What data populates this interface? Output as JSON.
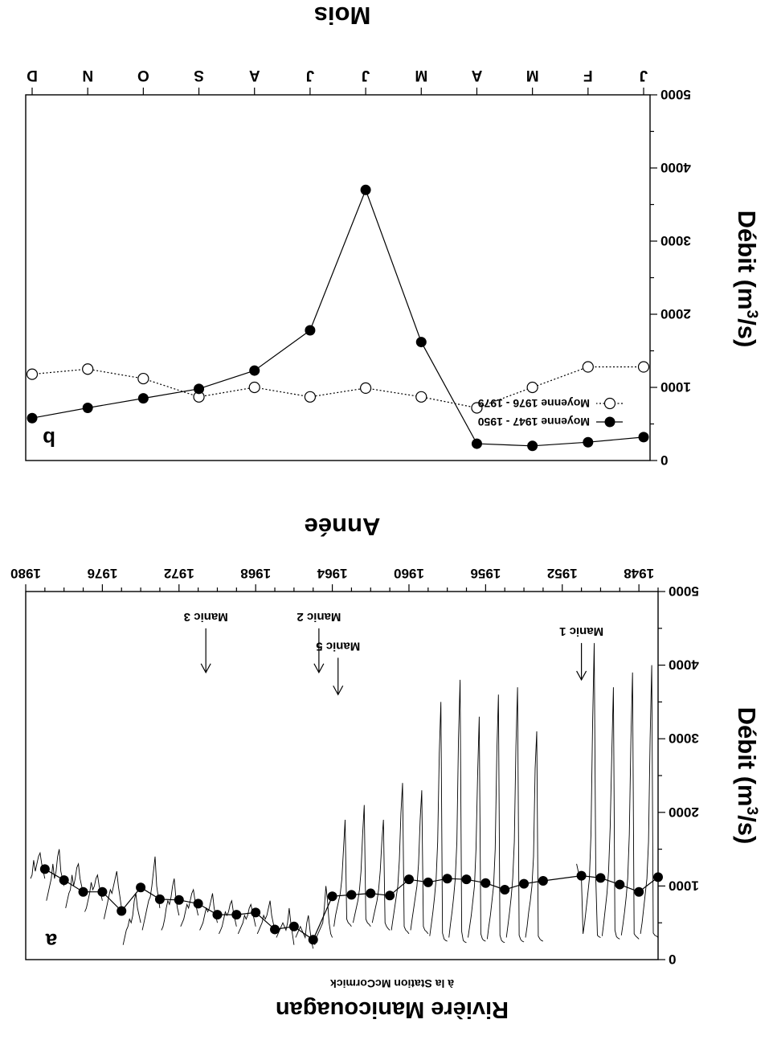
{
  "figure": {
    "title": "Rivière Manicouagan",
    "subtitle": "à la Station McCormick"
  },
  "chart_data": [
    {
      "id": "a",
      "type": "line",
      "panel_label": "a",
      "xlabel": "Année",
      "ylabel": "Débit (m",
      "ylabel_sup": "3",
      "ylabel_tail": "/s)",
      "xlim": [
        1947,
        1980
      ],
      "ylim": [
        0,
        5000
      ],
      "x_ticks": [
        1948,
        1952,
        1956,
        1960,
        1964,
        1968,
        1972,
        1976,
        1980
      ],
      "y_ticks": [
        0,
        1000,
        2000,
        3000,
        4000,
        5000
      ],
      "grid": false,
      "series": [
        {
          "name": "",
          "marker": "filled-circle",
          "x": [
            1947,
            1948,
            1949,
            1950,
            1951,
            1953,
            1954,
            1955,
            1956,
            1957,
            1958,
            1959,
            1960,
            1961,
            1962,
            1963,
            1964,
            1965,
            1966,
            1967,
            1968,
            1969,
            1970,
            1971,
            1972,
            1973,
            1974,
            1975,
            1976,
            1977,
            1978,
            1979
          ],
          "values": [
            1120,
            920,
            1020,
            1110,
            1140,
            1070,
            1030,
            950,
            1040,
            1090,
            1100,
            1050,
            1090,
            870,
            900,
            880,
            860,
            270,
            450,
            410,
            640,
            610,
            610,
            760,
            810,
            820,
            980,
            660,
            920,
            920,
            1080,
            1230
          ]
        },
        {
          "name": "",
          "marker": "none",
          "style": "monthly",
          "segments": [
            {
              "start": 1947.0,
              "values": [
                300,
                320,
                330,
                360,
                4000,
                3000,
                1600,
                1100,
                900,
                700,
                500,
                350
              ]
            },
            {
              "start": 1948.0,
              "values": [
                280,
                300,
                320,
                350,
                3900,
                3000,
                1700,
                1100,
                850,
                650,
                480,
                330
              ]
            },
            {
              "start": 1949.0,
              "values": [
                280,
                290,
                310,
                400,
                3700,
                2800,
                1800,
                1200,
                900,
                700,
                500,
                320
              ]
            },
            {
              "start": 1950.0,
              "values": [
                300,
                310,
                330,
                1100,
                4300,
                3200,
                1700,
                1100,
                900,
                700,
                500,
                350,
                1100,
                1150,
                1200,
                1300
              ]
            },
            {
              "start": 1953.0,
              "values": [
                250,
                260,
                280,
                320,
                3100,
                2600,
                1400,
                1000,
                800,
                650,
                450,
                300
              ]
            },
            {
              "start": 1954.0,
              "values": [
                240,
                250,
                270,
                330,
                3700,
                2900,
                1600,
                1100,
                850,
                650,
                470,
                300
              ]
            },
            {
              "start": 1955.0,
              "values": [
                230,
                240,
                260,
                330,
                3600,
                2800,
                1500,
                1000,
                800,
                600,
                450,
                280
              ]
            },
            {
              "start": 1956.0,
              "values": [
                250,
                260,
                280,
                350,
                3300,
                2500,
                1500,
                1000,
                800,
                600,
                450,
                300
              ]
            },
            {
              "start": 1957.0,
              "values": [
                230,
                240,
                260,
                380,
                3800,
                3000,
                1600,
                1100,
                850,
                650,
                480,
                300
              ]
            },
            {
              "start": 1958.0,
              "values": [
                250,
                260,
                280,
                360,
                3500,
                2800,
                1600,
                1100,
                850,
                650,
                480,
                320
              ]
            },
            {
              "start": 1959.0,
              "values": [
                350,
                380,
                400,
                450,
                2300,
                1900,
                1300,
                1000,
                850,
                700,
                550,
                400
              ]
            },
            {
              "start": 1960.0,
              "values": [
                350,
                380,
                400,
                450,
                2400,
                2000,
                1350,
                1000,
                850,
                700,
                550,
                400
              ]
            },
            {
              "start": 1961.0,
              "values": [
                400,
                420,
                450,
                500,
                1900,
                1600,
                1200,
                950,
                800,
                700,
                600,
                500
              ]
            },
            {
              "start": 1962.0,
              "values": [
                450,
                480,
                500,
                550,
                2100,
                1700,
                1200,
                950,
                800,
                700,
                600,
                500
              ]
            },
            {
              "start": 1963.0,
              "values": [
                450,
                480,
                500,
                550,
                1900,
                1500,
                1100,
                900,
                800,
                700,
                600,
                450
              ]
            },
            {
              "start": 1964.0,
              "values": [
                300,
                350,
                500,
                800,
                1000,
                700,
                500,
                450,
                400,
                350,
                300,
                200
              ]
            },
            {
              "start": 1965.0,
              "values": [
                150,
                250,
                400,
                600,
                500,
                300,
                350,
                400,
                450,
                400,
                350,
                300
              ]
            },
            {
              "start": 1966.0,
              "values": [
                200,
                350,
                500,
                700,
                500,
                400,
                450,
                500,
                450,
                400,
                350,
                300
              ]
            },
            {
              "start": 1967.0,
              "values": [
                400,
                500,
                600,
                800,
                700,
                600,
                550,
                600,
                500,
                450,
                400,
                350
              ]
            },
            {
              "start": 1968.0,
              "values": [
                450,
                550,
                650,
                750,
                700,
                600,
                550,
                600,
                500,
                450,
                400,
                350
              ]
            },
            {
              "start": 1969.0,
              "values": [
                450,
                550,
                650,
                800,
                750,
                650,
                600,
                650,
                550,
                450,
                400,
                350
              ]
            },
            {
              "start": 1970.0,
              "values": [
                500,
                600,
                700,
                900,
                800,
                700,
                650,
                700,
                600,
                500,
                450,
                400
              ]
            },
            {
              "start": 1971.0,
              "values": [
                600,
                700,
                800,
                950,
                900,
                800,
                700,
                750,
                650,
                550,
                500,
                450
              ]
            },
            {
              "start": 1972.0,
              "values": [
                600,
                700,
                850,
                1100,
                1000,
                850,
                750,
                800,
                700,
                550,
                450,
                400
              ]
            },
            {
              "start": 1973.0,
              "values": [
                700,
                850,
                1000,
                1400,
                1200,
                1000,
                850,
                800,
                700,
                600,
                500,
                400
              ]
            },
            {
              "start": 1974.0,
              "values": [
                500,
                600,
                700,
                900,
                800,
                600,
                500,
                550,
                450,
                400,
                300,
                200
              ]
            },
            {
              "start": 1975.0,
              "values": [
                700,
                850,
                1000,
                1200,
                1100,
                1000,
                900,
                950,
                850,
                750,
                650,
                550
              ]
            },
            {
              "start": 1976.0,
              "values": [
                800,
                900,
                1000,
                1150,
                1100,
                1000,
                950,
                1050,
                900,
                800,
                700,
                650
              ]
            },
            {
              "start": 1977.0,
              "values": [
                900,
                1000,
                1100,
                1300,
                1250,
                1100,
                1000,
                1150,
                950,
                900,
                800,
                700
              ]
            },
            {
              "start": 1978.0,
              "values": [
                1000,
                1100,
                1200,
                1500,
                1400,
                1200,
                1100,
                1300,
                1100,
                1000,
                900,
                800
              ]
            },
            {
              "start": 1979.0,
              "values": [
                1100,
                1200,
                1300,
                1450,
                1400,
                1300,
                1200,
                1350,
                1150,
                1100
              ]
            }
          ]
        }
      ],
      "annotations": [
        {
          "label": "Manic 1",
          "x": 1951.0,
          "tip_y": 3800,
          "tail_y": 4300
        },
        {
          "label": "Manic 5",
          "x": 1963.7,
          "tip_y": 3600,
          "tail_y": 4100
        },
        {
          "label": "Manic 2",
          "x": 1964.7,
          "tip_y": 3900,
          "tail_y": 4500
        },
        {
          "label": "Manic 3",
          "x": 1970.6,
          "tip_y": 3900,
          "tail_y": 4500
        }
      ]
    },
    {
      "id": "b",
      "type": "line",
      "panel_label": "b",
      "xlabel": "Mois",
      "ylabel": "Débit (m",
      "ylabel_sup": "3",
      "ylabel_tail": "/s)",
      "categories": [
        "J",
        "F",
        "M",
        "A",
        "M",
        "J",
        "J",
        "A",
        "S",
        "O",
        "N",
        "D"
      ],
      "ylim": [
        0,
        5000
      ],
      "y_ticks": [
        0,
        1000,
        2000,
        3000,
        4000,
        5000
      ],
      "grid": false,
      "legend_position": "bottom-left",
      "series": [
        {
          "name": "Moyenne 1947 - 1950",
          "marker": "filled-circle",
          "line": "solid",
          "values": [
            320,
            250,
            200,
            230,
            1620,
            3700,
            1780,
            1230,
            980,
            850,
            720,
            580
          ]
        },
        {
          "name": "Moyenne 1976 - 1979",
          "marker": "open-circle",
          "line": "dotted",
          "values": [
            1280,
            1280,
            1000,
            720,
            870,
            990,
            870,
            1000,
            870,
            1120,
            1250,
            1180
          ]
        }
      ]
    }
  ]
}
